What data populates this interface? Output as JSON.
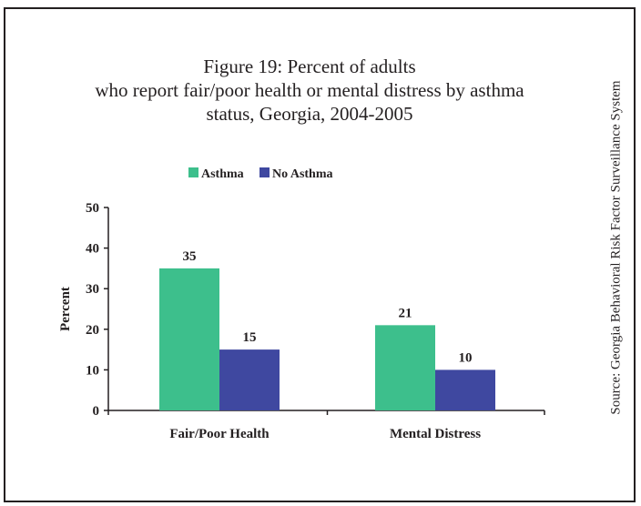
{
  "title_lines": [
    "Figure 19: Percent of adults",
    "who report fair/poor health or mental distress by asthma",
    "status, Georgia, 2004-2005"
  ],
  "source_note": "Source: Georgia Behavioral Risk Factor Surveillance System",
  "colors": {
    "asthma": "#3dbf8c",
    "no_asthma": "#3f48a0",
    "axis": "#231f20"
  },
  "chart_data": {
    "type": "bar",
    "title": "Figure 19: Percent of adults who report fair/poor health or mental distress by asthma status, Georgia, 2004-2005",
    "categories": [
      "Fair/Poor Health",
      "Mental Distress"
    ],
    "series": [
      {
        "name": "Asthma",
        "values": [
          35,
          21
        ],
        "labels": [
          "35",
          "21"
        ]
      },
      {
        "name": "No Asthma",
        "values": [
          15,
          10
        ],
        "labels": [
          "15",
          "10"
        ]
      }
    ],
    "xlabel": "",
    "ylabel": "Percent",
    "ylim": [
      0,
      50
    ],
    "yticks": [
      0,
      10,
      20,
      30,
      40,
      50
    ],
    "ytick_labels": [
      "0",
      "10",
      "20",
      "30",
      "40",
      "50"
    ],
    "grid": false,
    "legend_position": "top-center"
  }
}
